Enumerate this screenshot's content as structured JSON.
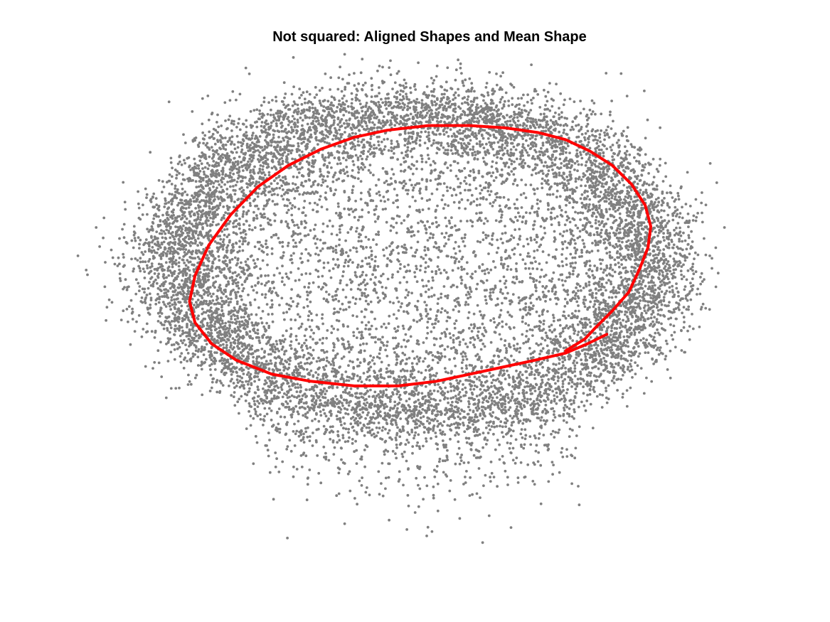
{
  "chart_data": {
    "type": "scatter",
    "title": "Not squared: Aligned Shapes and Mean Shape",
    "xlabel": "",
    "ylabel": "",
    "axes_visible": false,
    "grid": false,
    "legend": "none",
    "xlim": [
      -1.0,
      1.0
    ],
    "ylim": [
      -1.0,
      1.0
    ],
    "colors": {
      "points": "#808080",
      "mean_shape": "#ff0000"
    },
    "series": [
      {
        "kind": "points",
        "description_points": "approx. 12000 aligned shape points scattered around an elliptical ring",
        "point_count": 12000,
        "ring": {
          "center": [
            0.0,
            0.0
          ],
          "radius_x": 0.86,
          "radius_y": 0.62,
          "jitter": 0.07,
          "interior_fraction": 0.22,
          "lower_spill": true
        }
      },
      {
        "kind": "line",
        "shape": "mean",
        "x": [
          0.55,
          0.62,
          0.66,
          0.72,
          0.78,
          0.82,
          0.85,
          0.86,
          0.84,
          0.79,
          0.72,
          0.64,
          0.55,
          0.45,
          0.33,
          0.2,
          0.05,
          -0.1,
          -0.22,
          -0.34,
          -0.46,
          -0.57,
          -0.67,
          -0.75,
          -0.8,
          -0.82,
          -0.8,
          -0.74,
          -0.65,
          -0.52,
          -0.38,
          -0.22,
          -0.06,
          0.08,
          0.2,
          0.32,
          0.44,
          0.55,
          0.63,
          0.7
        ],
        "y": [
          -0.38,
          -0.33,
          -0.28,
          -0.21,
          -0.13,
          -0.03,
          0.06,
          0.15,
          0.24,
          0.33,
          0.41,
          0.47,
          0.52,
          0.55,
          0.57,
          0.58,
          0.58,
          0.56,
          0.53,
          0.48,
          0.41,
          0.32,
          0.2,
          0.07,
          -0.06,
          -0.17,
          -0.26,
          -0.35,
          -0.42,
          -0.48,
          -0.51,
          -0.53,
          -0.53,
          -0.51,
          -0.48,
          -0.45,
          -0.42,
          -0.39,
          -0.35,
          -0.31
        ]
      }
    ]
  }
}
